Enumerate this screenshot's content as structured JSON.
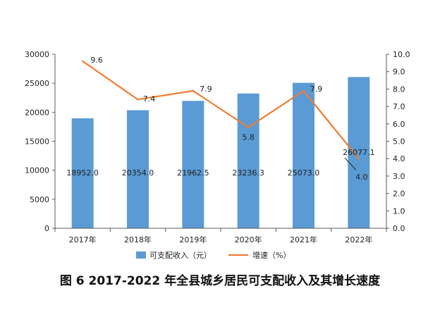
{
  "caption": "图 6 2017-2022 年全县城乡居民可支配收入及其增长速度",
  "chart_data": {
    "type": "bar",
    "categories": [
      "2017年",
      "2018年",
      "2019年",
      "2020年",
      "2021年",
      "2022年"
    ],
    "series": [
      {
        "name": "可支配收入（元）",
        "type": "bar",
        "axis": "left",
        "color": "#5b9bd5",
        "values": [
          18952.0,
          20354.0,
          21962.5,
          23236.3,
          25073.0,
          26077.1
        ],
        "labels": [
          "18952.0",
          "20354.0",
          "21962.5",
          "23236.3",
          "25073.0",
          "26077.1"
        ]
      },
      {
        "name": "增速（%）",
        "type": "line",
        "axis": "right",
        "color": "#ed7d31",
        "values": [
          9.6,
          7.4,
          7.9,
          5.8,
          7.9,
          4.0
        ],
        "labels": [
          "9.6",
          "7.4",
          "7.9",
          "5.8",
          "7.9",
          "4.0"
        ]
      }
    ],
    "y_left": {
      "ylim": [
        0,
        30000
      ],
      "ticks": [
        "0",
        "5000",
        "10000",
        "15000",
        "20000",
        "25000",
        "30000"
      ]
    },
    "y_right": {
      "ylim": [
        0,
        10
      ],
      "ticks": [
        "0.0",
        "1.0",
        "2.0",
        "3.0",
        "4.0",
        "5.0",
        "6.0",
        "7.0",
        "8.0",
        "9.0",
        "10.0"
      ]
    },
    "grid": false,
    "legend": "bottom"
  }
}
